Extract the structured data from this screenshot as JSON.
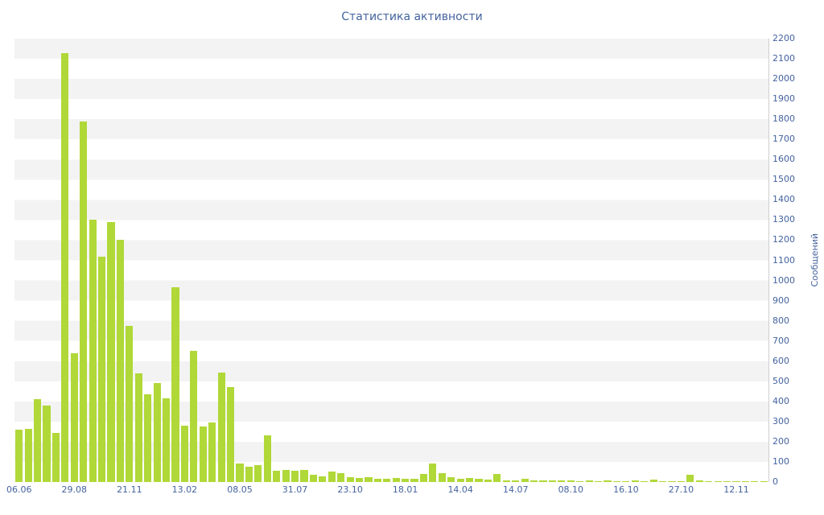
{
  "title": "Статистика активности",
  "chart_data": {
    "type": "bar",
    "title": "Статистика активности",
    "xlabel": "",
    "ylabel": "Сообщений",
    "ylim": [
      0,
      2200
    ],
    "y_tick_step": 100,
    "y_ticks": [
      0,
      100,
      200,
      300,
      400,
      500,
      600,
      700,
      800,
      900,
      1000,
      1100,
      1200,
      1300,
      1400,
      1500,
      1600,
      1700,
      1800,
      1900,
      2000,
      2100,
      2200
    ],
    "grid": "horizontal-bands",
    "legend_position": "none",
    "bar_color": "#b0d838",
    "label_color": "#44639e",
    "band_color_a": "#f3f3f3",
    "band_color_b": "#ffffff",
    "bar_count": 82,
    "x_tick_every": 6,
    "x_tick_labels": [
      "06.06",
      "29.08",
      "21.11",
      "13.02",
      "08.05",
      "31.07",
      "23.10",
      "18.01",
      "14.04",
      "14.07",
      "08.10",
      "16.10",
      "27.10",
      "12.11"
    ],
    "values": [
      260,
      265,
      410,
      380,
      245,
      2130,
      640,
      1790,
      1300,
      1120,
      1290,
      1200,
      775,
      540,
      435,
      490,
      415,
      965,
      280,
      650,
      275,
      295,
      545,
      470,
      90,
      75,
      85,
      230,
      55,
      60,
      55,
      60,
      35,
      30,
      50,
      45,
      25,
      20,
      25,
      15,
      15,
      20,
      15,
      15,
      40,
      90,
      45,
      25,
      15,
      20,
      15,
      12,
      40,
      10,
      8,
      15,
      10,
      8,
      10,
      8,
      8,
      6,
      8,
      6,
      8,
      5,
      5,
      8,
      5,
      12,
      5,
      5,
      6,
      35,
      8,
      5,
      5,
      5,
      5,
      4,
      5,
      6
    ]
  }
}
